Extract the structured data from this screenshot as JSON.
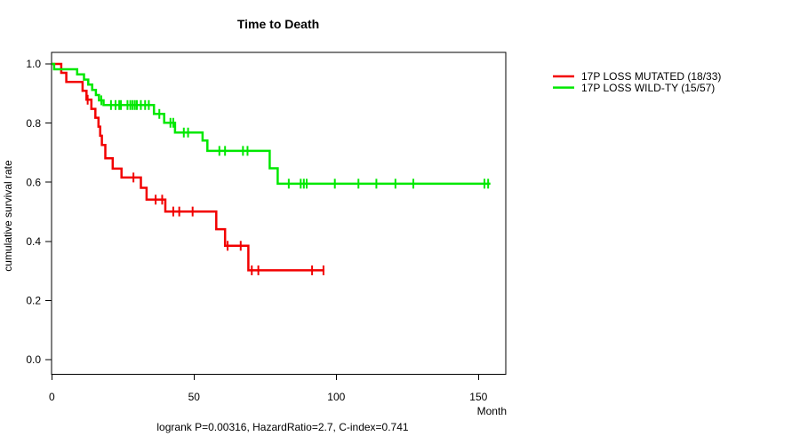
{
  "figure": {
    "title": "Time to Death",
    "xlabel": "Month",
    "ylabel": "cumulative survival rate",
    "annotation": "logrank P=0.00316, HazardRatio=2.7, C-index=0.741"
  },
  "legend": {
    "items": [
      {
        "label": "17P LOSS MUTATED (18/33)",
        "color": "#f20000"
      },
      {
        "label": "17P LOSS WILD-TY (15/57)",
        "color": "#00e800"
      }
    ]
  },
  "chart_data": {
    "type": "line",
    "subtype": "kaplan-meier-step",
    "title": "Time to Death",
    "xlabel": "Month",
    "ylabel": "cumulative survival rate",
    "annotation": "logrank P=0.00316, HazardRatio=2.7, C-index=0.741",
    "grid": false,
    "legend_position": "outside-right",
    "xlim": [
      0,
      160
    ],
    "ylim": [
      0.0,
      1.04
    ],
    "x_ticks": [
      0,
      50,
      100,
      150
    ],
    "y_ticks": [
      0.0,
      0.2,
      0.4,
      0.6,
      0.8,
      1.0
    ],
    "series": [
      {
        "name": "17P LOSS MUTATED (18/33)",
        "color": "#f20000",
        "events": "18/33",
        "steps": [
          [
            0,
            1.0
          ],
          [
            3.3,
            0.97
          ],
          [
            5.1,
            0.939
          ],
          [
            10.8,
            0.909
          ],
          [
            12.2,
            0.879
          ],
          [
            13.9,
            0.848
          ],
          [
            15.3,
            0.818
          ],
          [
            16.4,
            0.788
          ],
          [
            17.0,
            0.757
          ],
          [
            17.6,
            0.726
          ],
          [
            18.8,
            0.681
          ],
          [
            21.4,
            0.646
          ],
          [
            24.5,
            0.616
          ],
          [
            31.3,
            0.581
          ],
          [
            33.3,
            0.541
          ],
          [
            39.9,
            0.501
          ],
          [
            57.8,
            0.441
          ],
          [
            60.9,
            0.385
          ],
          [
            69.1,
            0.302
          ]
        ],
        "end_month": 95.8,
        "censors": [
          [
            12.6,
            0.879
          ],
          [
            28.7,
            0.616
          ],
          [
            36.5,
            0.541
          ],
          [
            38.8,
            0.541
          ],
          [
            42.7,
            0.501
          ],
          [
            44.8,
            0.501
          ],
          [
            49.5,
            0.501
          ],
          [
            61.8,
            0.385
          ],
          [
            66.4,
            0.385
          ],
          [
            70.3,
            0.302
          ],
          [
            72.6,
            0.302
          ],
          [
            91.5,
            0.302
          ],
          [
            95.5,
            0.302
          ]
        ]
      },
      {
        "name": "17P LOSS WILD-TY (15/57)",
        "color": "#00e800",
        "events": "15/57",
        "steps": [
          [
            0,
            1.0
          ],
          [
            0.8,
            0.982
          ],
          [
            8.9,
            0.965
          ],
          [
            11.3,
            0.947
          ],
          [
            12.8,
            0.93
          ],
          [
            14.2,
            0.912
          ],
          [
            15.5,
            0.895
          ],
          [
            16.6,
            0.877
          ],
          [
            18.2,
            0.861
          ],
          [
            35.9,
            0.831
          ],
          [
            39.5,
            0.801
          ],
          [
            43.3,
            0.768
          ],
          [
            53.0,
            0.741
          ],
          [
            54.7,
            0.706
          ],
          [
            76.6,
            0.647
          ],
          [
            79.4,
            0.595
          ]
        ],
        "end_month": 154.2,
        "censors": [
          [
            17.4,
            0.877
          ],
          [
            20.8,
            0.861
          ],
          [
            22.4,
            0.861
          ],
          [
            23.7,
            0.861
          ],
          [
            24.3,
            0.861
          ],
          [
            26.6,
            0.861
          ],
          [
            27.6,
            0.861
          ],
          [
            28.4,
            0.861
          ],
          [
            29.2,
            0.861
          ],
          [
            29.9,
            0.861
          ],
          [
            31.3,
            0.861
          ],
          [
            32.8,
            0.861
          ],
          [
            34.1,
            0.861
          ],
          [
            37.8,
            0.831
          ],
          [
            41.7,
            0.801
          ],
          [
            42.7,
            0.801
          ],
          [
            46.4,
            0.768
          ],
          [
            47.9,
            0.768
          ],
          [
            58.9,
            0.706
          ],
          [
            60.9,
            0.706
          ],
          [
            67.2,
            0.706
          ],
          [
            68.8,
            0.706
          ],
          [
            83.3,
            0.595
          ],
          [
            87.5,
            0.595
          ],
          [
            88.6,
            0.595
          ],
          [
            89.6,
            0.595
          ],
          [
            99.5,
            0.595
          ],
          [
            107.8,
            0.595
          ],
          [
            114.1,
            0.595
          ],
          [
            120.8,
            0.595
          ],
          [
            127.1,
            0.595
          ],
          [
            152.1,
            0.595
          ],
          [
            153.4,
            0.595
          ]
        ]
      }
    ]
  }
}
